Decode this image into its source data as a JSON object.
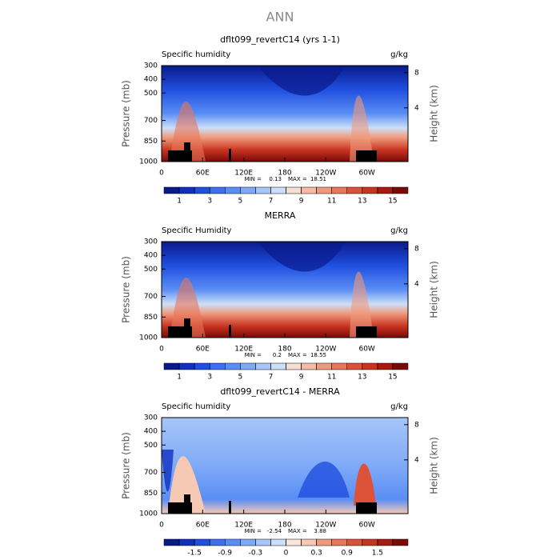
{
  "title": "ANN",
  "chart_data": [
    {
      "type": "contour",
      "title": "dflt099_revertC14 (yrs 1-1)",
      "left_label": "Specific humidity",
      "right_label": "g/kg",
      "ylabel": "Pressure (mb)",
      "y2label": "Height (km)",
      "xlim": [
        0,
        360
      ],
      "xticks": [
        0,
        {
          "value": 60,
          "label": "60E"
        },
        {
          "value": 120,
          "label": "120E"
        },
        180,
        {
          "value": 240,
          "label": "120W"
        },
        {
          "value": 300,
          "label": "60W"
        }
      ],
      "ylim": [
        1000,
        300
      ],
      "yticks": [
        300,
        400,
        500,
        700,
        850,
        1000
      ],
      "y2lim": [
        -2.1,
        8.8
      ],
      "y2ticks": [
        4,
        8
      ],
      "min_label": "MIN =",
      "min": 0.13,
      "max_label": "MAX =",
      "max": 18.51,
      "levels": [
        1,
        2,
        3,
        4,
        5,
        6,
        7,
        8,
        9,
        10,
        11,
        12,
        13,
        14,
        15
      ],
      "colorbar_ticks": [
        1,
        3,
        5,
        7,
        9,
        11,
        13,
        15
      ],
      "colors": [
        "#0a1a8c",
        "#1030c0",
        "#1f4fe0",
        "#3a6ff0",
        "#5a8ef5",
        "#7faaf7",
        "#a7c5f8",
        "#cddff8",
        "#f5ddd0",
        "#f6bba5",
        "#f09a7c",
        "#e8765a",
        "#dc5238",
        "#c83420",
        "#a81a10",
        "#7a0a08"
      ]
    },
    {
      "type": "contour",
      "title": "MERRA",
      "left_label": "Specific Humidity",
      "right_label": "g/kg",
      "ylabel": "Pressure (mb)",
      "y2label": "Height (km)",
      "xlim": [
        0,
        360
      ],
      "xticks": [
        0,
        {
          "value": 60,
          "label": "60E"
        },
        {
          "value": 120,
          "label": "120E"
        },
        180,
        {
          "value": 240,
          "label": "120W"
        },
        {
          "value": 300,
          "label": "60W"
        }
      ],
      "ylim": [
        1000,
        300
      ],
      "yticks": [
        300,
        400,
        500,
        700,
        850,
        1000
      ],
      "y2lim": [
        -2.1,
        8.8
      ],
      "y2ticks": [
        4,
        8
      ],
      "min_label": "MIN =",
      "min": 0.2,
      "max_label": "MAX =",
      "max": 18.55,
      "levels": [
        1,
        2,
        3,
        4,
        5,
        6,
        7,
        8,
        9,
        10,
        11,
        12,
        13,
        14,
        15
      ],
      "colorbar_ticks": [
        1,
        3,
        5,
        7,
        9,
        11,
        13,
        15
      ],
      "colors": [
        "#0a1a8c",
        "#1030c0",
        "#1f4fe0",
        "#3a6ff0",
        "#5a8ef5",
        "#7faaf7",
        "#a7c5f8",
        "#cddff8",
        "#f5ddd0",
        "#f6bba5",
        "#f09a7c",
        "#e8765a",
        "#dc5238",
        "#c83420",
        "#a81a10",
        "#7a0a08"
      ]
    },
    {
      "type": "contour",
      "title": "dflt099_revertC14 - MERRA",
      "left_label": "Specific humidity",
      "right_label": "g/kg",
      "ylabel": "Pressure (mb)",
      "y2label": "Height (km)",
      "xlim": [
        0,
        360
      ],
      "xticks": [
        0,
        {
          "value": 60,
          "label": "60E"
        },
        {
          "value": 120,
          "label": "120E"
        },
        180,
        {
          "value": 240,
          "label": "120W"
        },
        {
          "value": 300,
          "label": "60W"
        }
      ],
      "ylim": [
        1000,
        300
      ],
      "yticks": [
        300,
        400,
        500,
        700,
        850,
        1000
      ],
      "y2lim": [
        -2.1,
        8.8
      ],
      "y2ticks": [
        4,
        8
      ],
      "min_label": "MIN =",
      "min": -2.54,
      "max_label": "MAX =",
      "max": 3.88,
      "levels": [
        -1.8,
        -1.5,
        -1.2,
        -0.9,
        -0.6,
        -0.3,
        -0.1,
        0,
        0.1,
        0.3,
        0.6,
        0.9,
        1.2,
        1.5,
        1.8
      ],
      "colorbar_ticks": [
        -1.5,
        -0.9,
        -0.3,
        0,
        0.3,
        0.9,
        1.5
      ],
      "colors": [
        "#0a1a8c",
        "#1030c0",
        "#1f4fe0",
        "#3a6ff0",
        "#5a8ef5",
        "#7faaf7",
        "#a7c5f8",
        "#cddff8",
        "#f8e6dc",
        "#f6c9b5",
        "#f09a7c",
        "#e8765a",
        "#dc5238",
        "#c83420",
        "#a81a10",
        "#7a0a08"
      ]
    }
  ]
}
